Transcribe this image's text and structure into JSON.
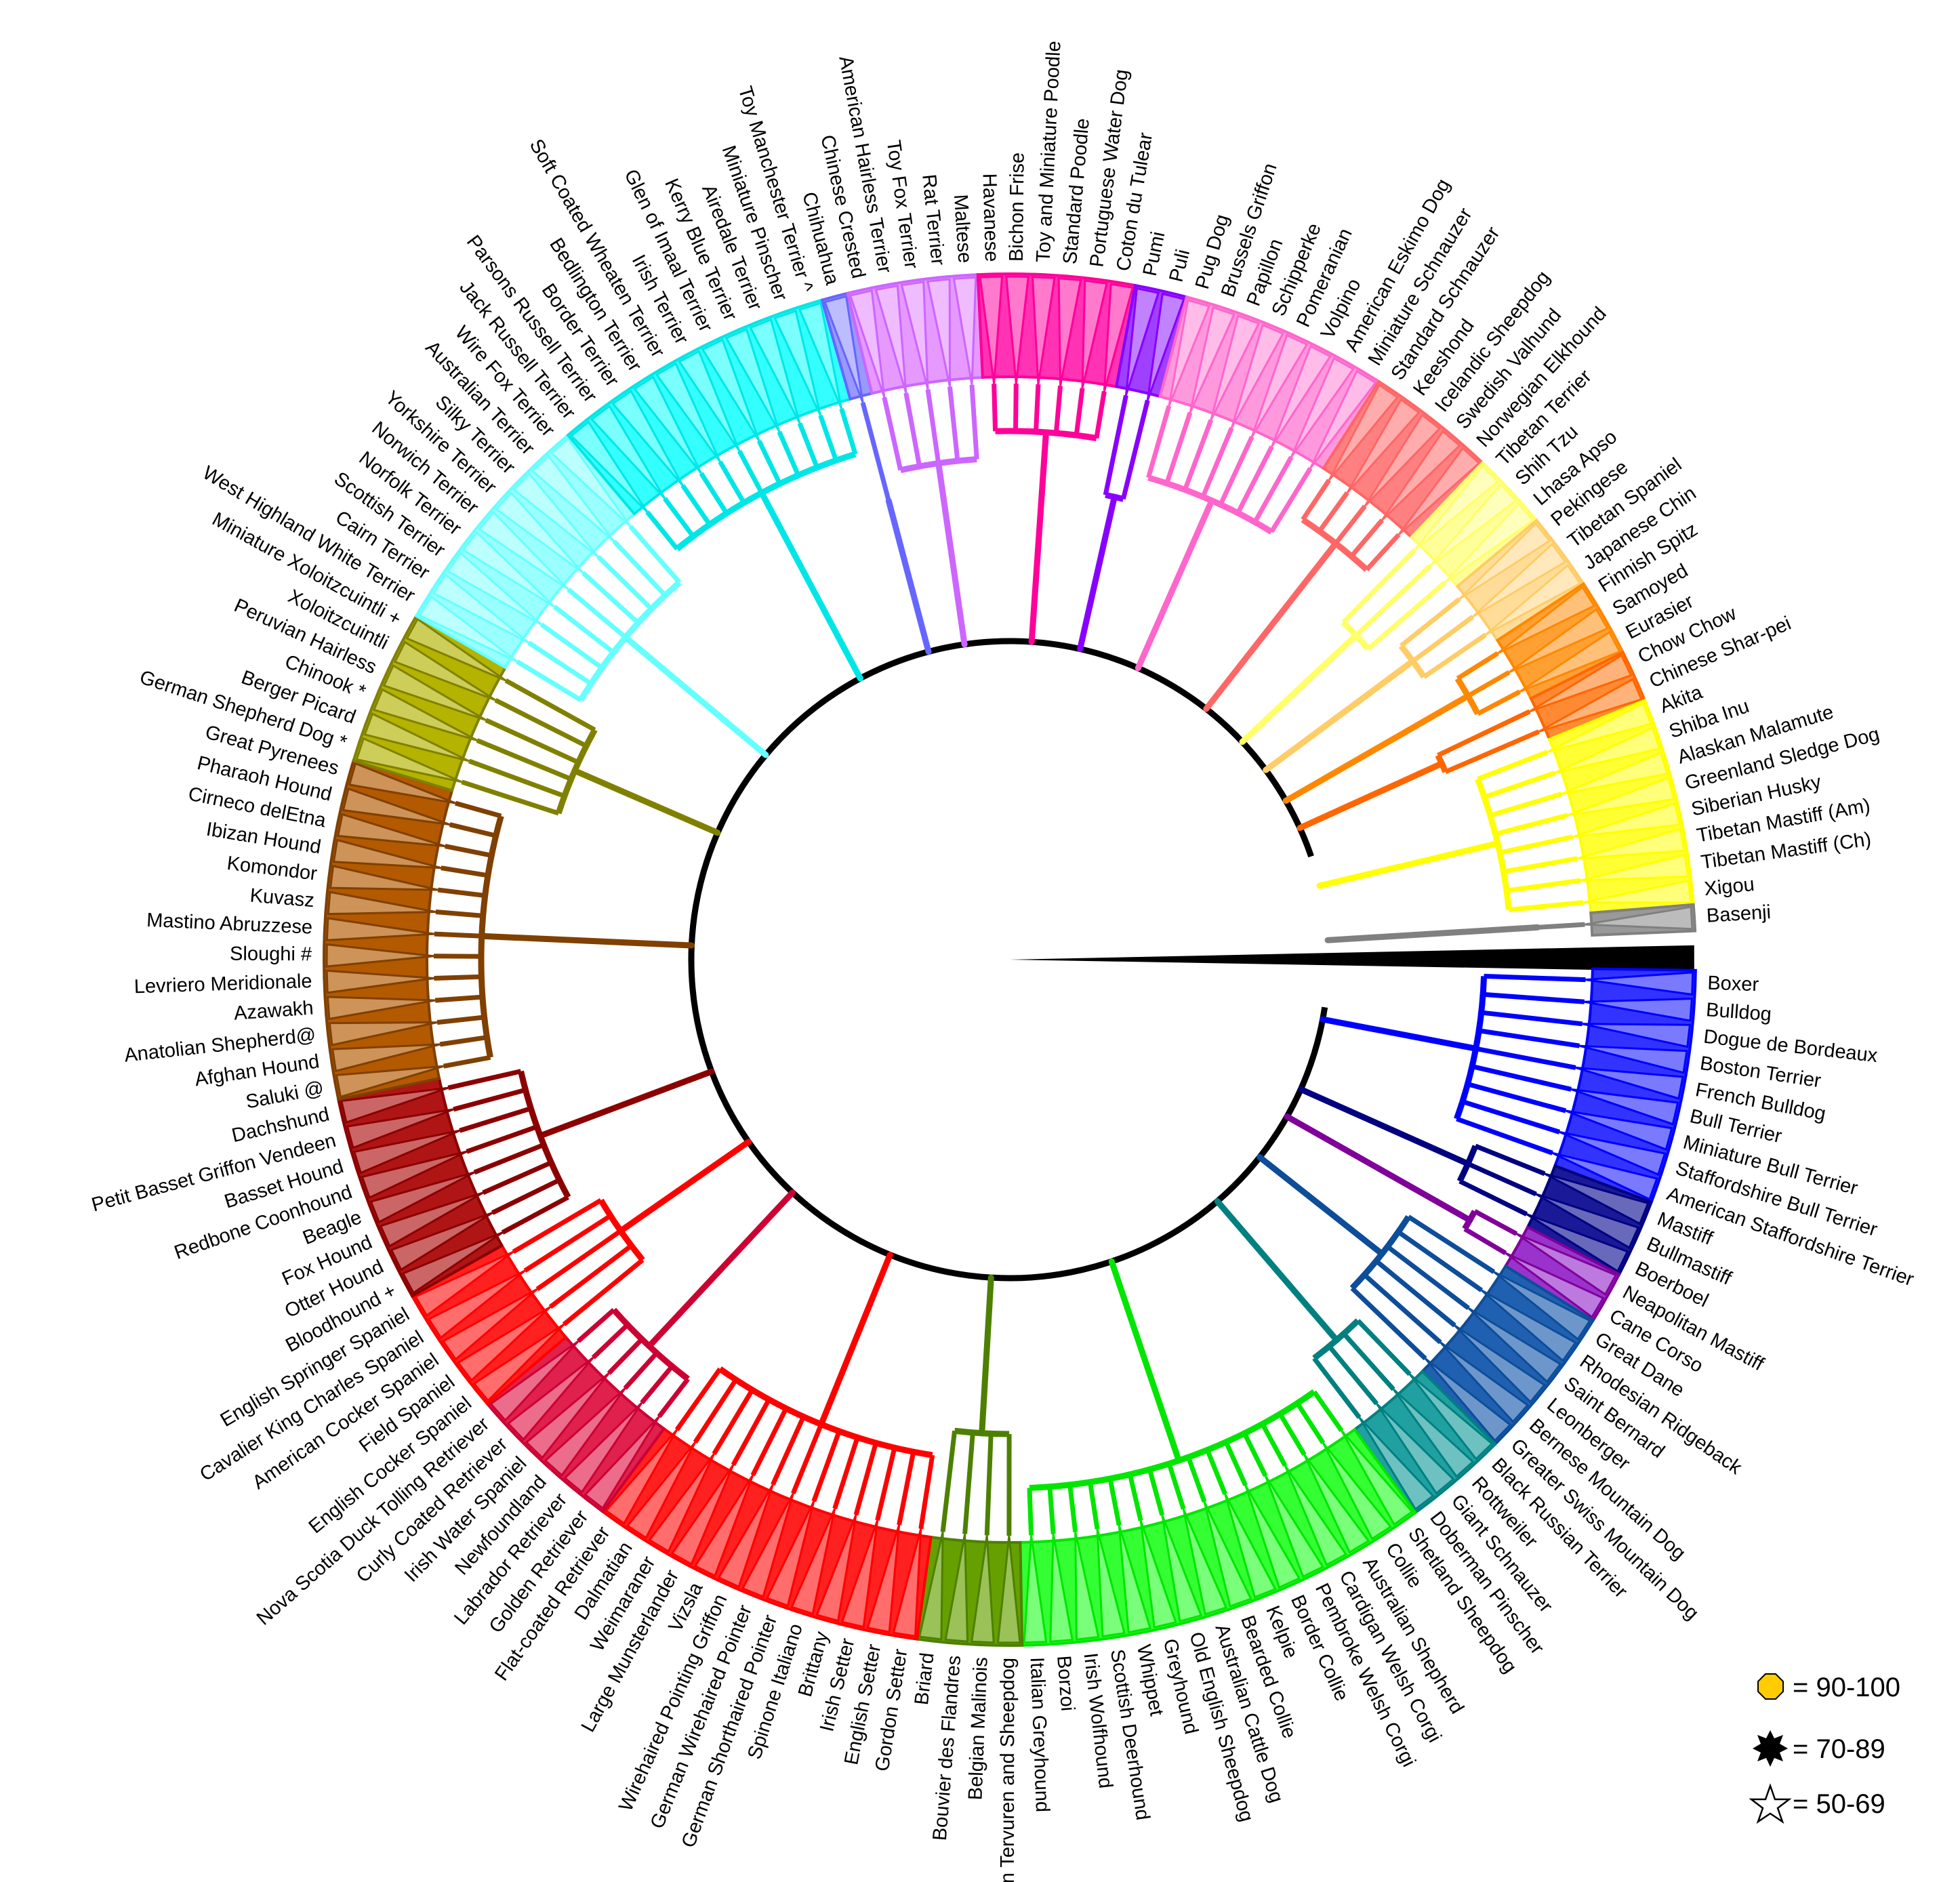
{
  "labels": [
    "Boxer",
    "Bulldog",
    "Dogue de Bordeaux",
    "Boston Terrier",
    "French Bulldog",
    "Bull Terrier",
    "Miniature Bull Terrier",
    "Staffordshire Bull Terrier",
    "American Staffordshire Terrier",
    "Mastiff",
    "Bullmastiff",
    "Boerboel",
    "Neapolitan Mastiff",
    "Cane Corso",
    "Great Dane",
    "Rhodesian Ridgeback",
    "Saint Bernard",
    "Leonberger",
    "Bernese Mountain Dog",
    "Greater Swiss Mountain Dog",
    "Black Russian Terrier",
    "Rottweiler",
    "Giant Schnauzer",
    "Doberman Pinscher",
    "Shetland Sheepdog",
    "Collie",
    "Australian Shepherd",
    "Cardigan Welsh Corgi",
    "Pembroke Welsh Corgi",
    "Border Collie",
    "Kelpie",
    "Bearded Collie",
    "Australian Cattle Dog",
    "Old English Sheepdog",
    "Greyhound",
    "Whippet",
    "Scottish Deerhound",
    "Irish Wolfhound",
    "Borzoi",
    "Italian Greyhound",
    "Belgian Tervuren and Sheepdog",
    "Belgian Malinois",
    "Bouvier des Flandres",
    "Briard",
    "Gordon Setter",
    "English Setter",
    "Irish Setter",
    "Brittany",
    "Spinone Italiano",
    "German Shorthaired Pointer",
    "German Wirehaired Pointer",
    "Wirehaired Pointing Griffon",
    "Vizsla",
    "Large Munsterlander",
    "Weimaraner",
    "Dalmatian",
    "Flat-coated Retriever",
    "Golden Retriever",
    "Labrador Retriever",
    "Newfoundland",
    "Irish Water Spaniel",
    "Curly Coated Retriever",
    "Nova Scotia Duck Tolling Retriever",
    "English Cocker Spaniel",
    "Field Spaniel",
    "American Cocker Spaniel",
    "Cavalier King Charles Spaniel",
    "English Springer Spaniel",
    "Bloodhound +",
    "Otter Hound",
    "Fox Hound",
    "Beagle",
    "Redbone Coonhound",
    "Basset Hound",
    "Petit Basset Griffon Vendeen",
    "Dachshund",
    "Saluki @",
    "Afghan Hound",
    "Anatolian Shepherd@",
    "Azawakh",
    "Levriero Meridionale",
    "Sloughi #",
    "Mastino Abruzzese",
    "Kuvasz",
    "Komondor",
    "Ibizan Hound",
    "Cirneco delEtna",
    "Pharaoh Hound",
    "Great Pyrenees",
    "German Shepherd Dog *",
    "Berger Picard",
    "Chinook *",
    "Peruvian Hairless",
    "Xoloitzcuintli",
    "Miniature Xoloitzcuintli +",
    "West Highland White Terrier",
    "Cairn Terrier",
    "Scottish Terrier",
    "Norfolk Terrier",
    "Norwich Terrier",
    "Yorkshire Terrier",
    "Silky Terrier",
    "Australian Terrier",
    "Wire Fox Terrier",
    "Jack Russell Terrier",
    "Parsons Russell Terrier",
    "Border Terrier",
    "Bedlington Terrier",
    "Soft Coated Wheaten Terrier",
    "Irish Terrier",
    "Glen of Imaal Terrier",
    "Kerry Blue Terrier",
    "Airedale Terrier",
    "Miniature Pinscher",
    "Toy Manchester Terrier ^",
    "Chihuahua",
    "Chinese Crested",
    "American Hairless Terrier",
    "Toy Fox Terrier",
    "Rat Terrier",
    "Maltese",
    "Havanese",
    "Bichon Frise",
    "Toy and Miniature Poodle",
    "Standard Poodle",
    "Portuguese Water Dog",
    "Coton du Tulear",
    "Pumi",
    "Puli",
    "Pug Dog",
    "Brussels Griffon",
    "Papillon",
    "Schipperke",
    "Pomeranian",
    "Volpino",
    "American Eskimo Dog",
    "Miniature Schnauzer",
    "Standard Schnauzer",
    "Keeshond",
    "Icelandic Sheepdog",
    "Swedish Valhund",
    "Norwegian Elkhound",
    "Tibetan Terrier",
    "Shih Tzu",
    "Lhasa Apso",
    "Pekingese",
    "Tibetan Spaniel",
    "Japanese Chin",
    "Finnish Spitz",
    "Samoyed",
    "Eurasier",
    "Chow Chow",
    "Chinese Shar-pei",
    "Akita",
    "Shiba Inu",
    "Alaskan Malamute",
    "Greenland Sledge Dog",
    "Siberian Husky",
    "Tibetan Mastiff (Am)",
    "Tibetan Mastiff (Ch)",
    "Xigou",
    "Basenji"
  ],
  "clades": [
    {
      "start": "Boxer",
      "end": "American Staffordshire Terrier",
      "color": "#0000ff",
      "fill": "#3333ff"
    },
    {
      "start": "Mastiff",
      "end": "Boerboel",
      "color": "#000080",
      "fill": "#1a1a99"
    },
    {
      "start": "Neapolitan Mastiff",
      "end": "Cane Corso",
      "color": "#800099",
      "fill": "#9933cc"
    },
    {
      "start": "Great Dane",
      "end": "Greater Swiss Mountain Dog",
      "color": "#0d4d99",
      "fill": "#2060b0"
    },
    {
      "start": "Black Russian Terrier",
      "end": "Doberman Pinscher",
      "color": "#008080",
      "fill": "#20a0a0"
    },
    {
      "start": "Shetland Sheepdog",
      "end": "Italian Greyhound",
      "color": "#00e600",
      "fill": "#33ff33"
    },
    {
      "start": "Belgian Tervuren and Sheepdog",
      "end": "Briard",
      "color": "#4d8000",
      "fill": "#66a000"
    },
    {
      "start": "Gordon Setter",
      "end": "Flat-coated Retriever",
      "color": "#ff0000",
      "fill": "#ff2020"
    },
    {
      "start": "Golden Retriever",
      "end": "Nova Scotia Duck Tolling Retriever",
      "color": "#cc0033",
      "fill": "#e0204d"
    },
    {
      "start": "English Cocker Spaniel",
      "end": "English Springer Spaniel",
      "color": "#ff0000",
      "fill": "#ff2020"
    },
    {
      "start": "Bloodhound +",
      "end": "Dachshund",
      "color": "#8b0000",
      "fill": "#b01515"
    },
    {
      "start": "Saluki @",
      "end": "Great Pyrenees",
      "color": "#804000",
      "fill": "#b35900"
    },
    {
      "start": "German Shepherd Dog *",
      "end": "Miniature Xoloitzcuintli +",
      "color": "#808000",
      "fill": "#b3b300"
    },
    {
      "start": "West Highland White Terrier",
      "end": "Wire Fox Terrier",
      "color": "#66ffff",
      "fill": "#99ffff"
    },
    {
      "start": "Jack Russell Terrier",
      "end": "Toy Manchester Terrier ^",
      "color": "#00e6e6",
      "fill": "#33ffff"
    },
    {
      "start": "Chihuahua",
      "end": "Chihuahua",
      "color": "#6666ff",
      "fill": "#9999ff"
    },
    {
      "start": "Chinese Crested",
      "end": "Maltese",
      "color": "#cc66ff",
      "fill": "#e699ff"
    },
    {
      "start": "Havanese",
      "end": "Coton du Tulear",
      "color": "#ff0099",
      "fill": "#ff33b3"
    },
    {
      "start": "Pumi",
      "end": "Puli",
      "color": "#8800ff",
      "fill": "#a040ff"
    },
    {
      "start": "Pug Dog",
      "end": "Miniature Schnauzer",
      "color": "#ff66cc",
      "fill": "#ff99dd"
    },
    {
      "start": "Standard Schnauzer",
      "end": "Norwegian Elkhound",
      "color": "#ff6666",
      "fill": "#ff8080"
    },
    {
      "start": "Tibetan Terrier",
      "end": "Lhasa Apso",
      "color": "#ffff66",
      "fill": "#ffff99"
    },
    {
      "start": "Pekingese",
      "end": "Japanese Chin",
      "color": "#ffcc66",
      "fill": "#ffdd99"
    },
    {
      "start": "Finnish Spitz",
      "end": "Eurasier",
      "color": "#ff8800",
      "fill": "#ffa033"
    },
    {
      "start": "Chow Chow",
      "end": "Chinese Shar-pei",
      "color": "#ff6600",
      "fill": "#ff8a33"
    },
    {
      "start": "Akita",
      "end": "Xigou",
      "color": "#ffff00",
      "fill": "#ffff33"
    },
    {
      "start": "Basenji",
      "end": "Basenji",
      "color": "#808080",
      "fill": "#999999"
    }
  ],
  "outgroup_color": "#000000",
  "backbone_color": "#000000",
  "legend": [
    {
      "symbol": "yellow-octagon",
      "color": "#ffcc00",
      "label": "= 90-100"
    },
    {
      "symbol": "black-star-burst",
      "color": "#000000",
      "label": "= 70-89"
    },
    {
      "symbol": "white-star",
      "color": "#ffffff",
      "label": "= 50-69"
    }
  ]
}
